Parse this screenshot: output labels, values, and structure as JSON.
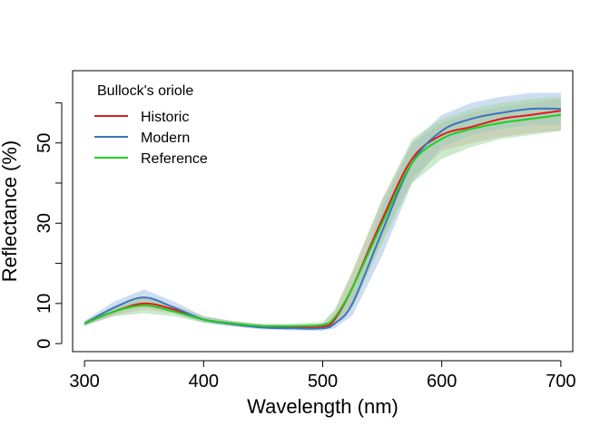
{
  "chart_data": {
    "type": "line",
    "title": "",
    "xlabel": "Wavelength (nm)",
    "ylabel": "Reflectance (%)",
    "xlim": [
      290,
      710
    ],
    "ylim": [
      -2,
      68
    ],
    "xticks": [
      300,
      400,
      500,
      600,
      700
    ],
    "yticks": [
      0,
      10,
      20,
      30,
      40,
      50,
      60
    ],
    "ytick_labels": [
      "0",
      "10",
      "",
      "30",
      "",
      "50",
      ""
    ],
    "grid": false,
    "legend": {
      "title": "Bullock's oriole",
      "position": "top-left",
      "entries": [
        "Historic",
        "Modern",
        "Reference"
      ]
    },
    "x": [
      300,
      325,
      350,
      375,
      400,
      425,
      450,
      475,
      500,
      510,
      525,
      550,
      575,
      600,
      625,
      650,
      675,
      700
    ],
    "series": [
      {
        "name": "Historic",
        "color": "#e31a1c",
        "band_color": "#e8a3a3",
        "values": [
          5,
          8,
          10,
          8.5,
          6,
          5,
          4.2,
          4,
          4.2,
          6,
          14,
          31,
          46,
          52,
          54,
          56,
          57,
          58
        ],
        "lower": [
          4.5,
          7,
          8.5,
          7.5,
          5.3,
          4.4,
          3.7,
          3.6,
          3.8,
          4.5,
          10,
          26,
          41,
          48,
          50,
          51.5,
          52.5,
          53
        ],
        "upper": [
          5.5,
          9,
          11.5,
          9.5,
          6.8,
          5.6,
          4.8,
          4.5,
          5,
          8,
          18,
          36,
          50,
          55,
          57.5,
          59,
          60,
          61
        ]
      },
      {
        "name": "Modern",
        "color": "#3a76bc",
        "band_color": "#9dbde2",
        "values": [
          5,
          9,
          11.5,
          9,
          6,
          4.8,
          4,
          3.8,
          3.8,
          5,
          10,
          28,
          45,
          53,
          56,
          57.5,
          58.5,
          58.5
        ],
        "lower": [
          4.3,
          7.3,
          9.5,
          7.5,
          5.2,
          4.2,
          3.5,
          3.3,
          3.2,
          3.8,
          7,
          22,
          40,
          49,
          52,
          53.5,
          54.5,
          54.5
        ],
        "upper": [
          5.7,
          10.5,
          13.5,
          10.5,
          6.8,
          5.4,
          4.5,
          4.3,
          4.5,
          6.5,
          14,
          34,
          50,
          57,
          60,
          61.5,
          62.5,
          62.5
        ]
      },
      {
        "name": "Reference",
        "color": "#1fcf1f",
        "band_color": "#9ed69e",
        "values": [
          5,
          8,
          9.5,
          8,
          6,
          5,
          4.4,
          4.4,
          4.7,
          6.5,
          14,
          30,
          45,
          51,
          53.5,
          55,
          56,
          57
        ],
        "lower": [
          4.5,
          6.8,
          7.5,
          6.8,
          5.2,
          4.5,
          4,
          4,
          4.2,
          5,
          9,
          25,
          40,
          46,
          49,
          51,
          52,
          53
        ],
        "upper": [
          5.5,
          9.2,
          11.5,
          9.2,
          6.8,
          5.6,
          4.9,
          5,
          5.4,
          8.5,
          18,
          36,
          51,
          56,
          58.5,
          60,
          61,
          61.5
        ]
      }
    ]
  }
}
